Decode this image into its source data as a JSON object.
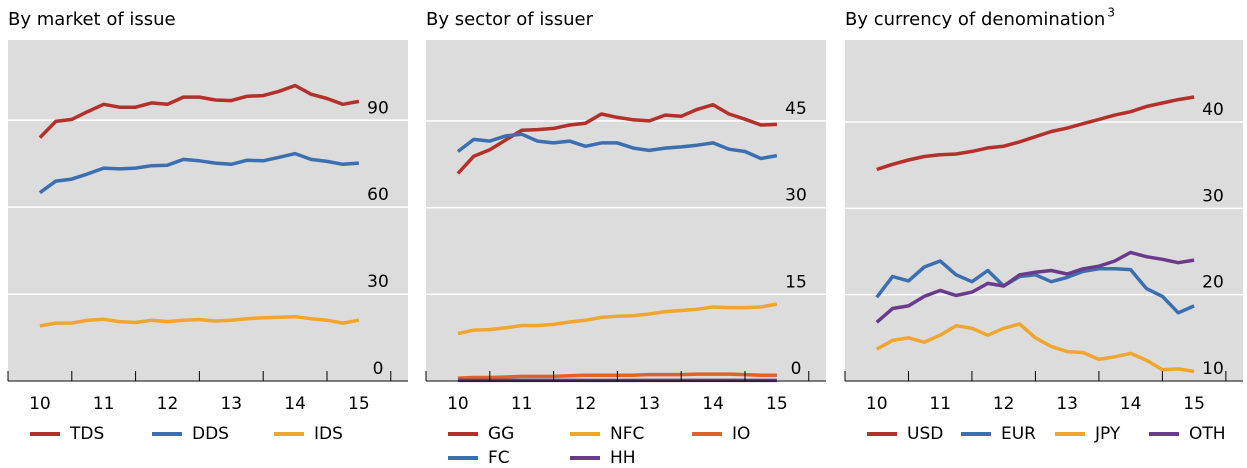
{
  "chart_data": [
    {
      "type": "line",
      "title": "By market of issue",
      "x": [
        10,
        10.25,
        10.5,
        10.75,
        11,
        11.25,
        11.5,
        11.75,
        12,
        12.25,
        12.5,
        12.75,
        13,
        13.25,
        13.5,
        13.75,
        14,
        14.25,
        14.5,
        14.75,
        15
      ],
      "xlim": [
        9.5,
        15.77
      ],
      "xticks": [
        10,
        11,
        12,
        13,
        14,
        15
      ],
      "ylim": [
        0,
        117.7
      ],
      "yticks": [
        0,
        30,
        60,
        90
      ],
      "grid": true,
      "series": [
        {
          "name": "TDS",
          "color": "#b3302b",
          "values": [
            84,
            89.6,
            90.3,
            93,
            95.5,
            94.5,
            94.5,
            96,
            95.5,
            98,
            98,
            97,
            96.8,
            98.3,
            98.5,
            100,
            102,
            99,
            97.5,
            95.5,
            96.5
          ]
        },
        {
          "name": "DDS",
          "color": "#3b6fb0",
          "values": [
            65,
            69,
            69.7,
            71.5,
            73.5,
            73.2,
            73.5,
            74.3,
            74.5,
            76.5,
            76,
            75.2,
            74.8,
            76.2,
            76,
            77.2,
            78.5,
            76.5,
            75.8,
            74.8,
            75.2
          ]
        },
        {
          "name": "IDS",
          "color": "#efa52e",
          "values": [
            19,
            20,
            20,
            21,
            21.3,
            20.5,
            20.2,
            21,
            20.5,
            21,
            21.2,
            20.7,
            21,
            21.5,
            21.8,
            22,
            22.2,
            21.5,
            21,
            20,
            21
          ]
        }
      ]
    },
    {
      "type": "line",
      "title": "By sector of issuer",
      "x": [
        10,
        10.25,
        10.5,
        10.75,
        11,
        11.25,
        11.5,
        11.75,
        12,
        12.25,
        12.5,
        12.75,
        13,
        13.25,
        13.5,
        13.75,
        14,
        14.25,
        14.5,
        14.75,
        15
      ],
      "xlim": [
        9.5,
        15.77
      ],
      "xticks": [
        10,
        11,
        12,
        13,
        14,
        15
      ],
      "ylim": [
        0,
        59
      ],
      "yticks": [
        0,
        15,
        30,
        45
      ],
      "grid": true,
      "series": [
        {
          "name": "GG",
          "color": "#b3302b",
          "values": [
            35.9,
            38.9,
            40,
            41.7,
            43.4,
            43.5,
            43.7,
            44.3,
            44.6,
            46.2,
            45.6,
            45.2,
            45,
            46,
            45.8,
            47,
            47.8,
            46.2,
            45.3,
            44.3,
            44.4
          ]
        },
        {
          "name": "NFC",
          "color": "#efa52e",
          "values": [
            8.2,
            8.8,
            8.9,
            9.2,
            9.6,
            9.6,
            9.8,
            10.2,
            10.5,
            11,
            11.2,
            11.3,
            11.6,
            12,
            12.2,
            12.4,
            12.8,
            12.7,
            12.7,
            12.8,
            13.3
          ]
        },
        {
          "name": "IO",
          "color": "#df6327",
          "values": [
            0.5,
            0.6,
            0.6,
            0.7,
            0.8,
            0.8,
            0.8,
            0.9,
            1,
            1,
            1,
            1,
            1.1,
            1.1,
            1.1,
            1.2,
            1.2,
            1.2,
            1.1,
            1,
            1
          ]
        },
        {
          "name": "FC",
          "color": "#3b6fb0",
          "values": [
            39.7,
            41.8,
            41.5,
            42.4,
            42.7,
            41.5,
            41.2,
            41.5,
            40.6,
            41.2,
            41.2,
            40.3,
            39.9,
            40.3,
            40.5,
            40.8,
            41.2,
            40.1,
            39.7,
            38.5,
            39
          ]
        },
        {
          "name": "HH",
          "color": "#6a3b8d",
          "values": [
            0.1,
            0.1,
            0.1,
            0.1,
            0.1,
            0.1,
            0.1,
            0.1,
            0.1,
            0.1,
            0.1,
            0.1,
            0.1,
            0.1,
            0.1,
            0.1,
            0.1,
            0.1,
            0.1,
            0.1,
            0.1
          ]
        }
      ]
    },
    {
      "type": "line",
      "title": "By currency of denomination",
      "title_note": "3",
      "x": [
        10,
        10.25,
        10.5,
        10.75,
        11,
        11.25,
        11.5,
        11.75,
        12,
        12.25,
        12.5,
        12.75,
        13,
        13.25,
        13.5,
        13.75,
        14,
        14.25,
        14.5,
        14.75,
        15
      ],
      "xlim": [
        9.5,
        15.77
      ],
      "xticks": [
        10,
        11,
        12,
        13,
        14,
        15
      ],
      "ylim": [
        10,
        49.5
      ],
      "yticks": [
        10,
        20,
        30,
        40
      ],
      "grid": true,
      "series": [
        {
          "name": "USD",
          "color": "#b3302b",
          "values": [
            34.5,
            35.1,
            35.6,
            36,
            36.2,
            36.3,
            36.6,
            37,
            37.2,
            37.7,
            38.3,
            38.9,
            39.3,
            39.8,
            40.3,
            40.8,
            41.2,
            41.8,
            42.2,
            42.6,
            42.9
          ]
        },
        {
          "name": "EUR",
          "color": "#3b6fb0",
          "values": [
            19.7,
            22.1,
            21.6,
            23.2,
            23.9,
            22.3,
            21.5,
            22.8,
            21,
            22.1,
            22.3,
            21.5,
            22,
            22.7,
            23,
            23,
            22.9,
            20.7,
            19.8,
            17.9,
            18.7
          ]
        },
        {
          "name": "JPY",
          "color": "#efa52e",
          "values": [
            13.7,
            14.7,
            15,
            14.5,
            15.3,
            16.4,
            16.1,
            15.3,
            16.1,
            16.6,
            15,
            14,
            13.4,
            13.3,
            12.5,
            12.8,
            13.2,
            12.4,
            11.3,
            11.4,
            11.1
          ]
        },
        {
          "name": "OTH",
          "color": "#6a3b8d",
          "values": [
            16.8,
            18.4,
            18.7,
            19.8,
            20.5,
            19.9,
            20.3,
            21.3,
            21,
            22.3,
            22.6,
            22.8,
            22.4,
            23,
            23.3,
            23.9,
            24.9,
            24.4,
            24.1,
            23.7,
            24
          ]
        }
      ]
    }
  ]
}
